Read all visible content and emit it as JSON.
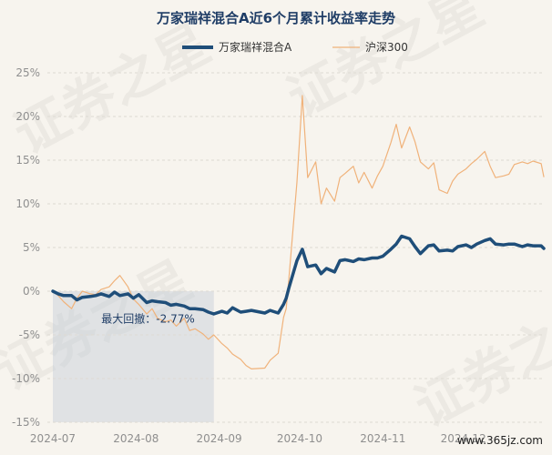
{
  "chart_data": {
    "type": "line",
    "title": "万家瑞祥混合A近6个月累计收益率走势",
    "legend_position": "top",
    "grid": true,
    "ylim": [
      -15,
      25
    ],
    "y_ticks": [
      "25%",
      "20%",
      "15%",
      "10%",
      "5%",
      "0%",
      "-5%",
      "-10%",
      "-15%"
    ],
    "y_tick_values": [
      25,
      20,
      15,
      10,
      5,
      0,
      -5,
      -10,
      -15
    ],
    "x_range": [
      "2024-07-01",
      "2024-12-31"
    ],
    "x_ticks": [
      {
        "label": "2024-07",
        "date": "2024-07-01"
      },
      {
        "label": "2024-08",
        "date": "2024-08-01"
      },
      {
        "label": "2024-09",
        "date": "2024-09-01"
      },
      {
        "label": "2024-10",
        "date": "2024-10-01"
      },
      {
        "label": "2024-11",
        "date": "2024-11-01"
      },
      {
        "label": "2024-12",
        "date": "2024-12-01"
      }
    ],
    "series": [
      {
        "name": "万家瑞祥混合A",
        "color": "#1f4e79",
        "points": [
          [
            "2024-07-01",
            0.0
          ],
          [
            "2024-07-03",
            -0.3
          ],
          [
            "2024-07-05",
            -0.5
          ],
          [
            "2024-07-08",
            -0.5
          ],
          [
            "2024-07-10",
            -1.0
          ],
          [
            "2024-07-12",
            -0.7
          ],
          [
            "2024-07-15",
            -0.6
          ],
          [
            "2024-07-17",
            -0.5
          ],
          [
            "2024-07-19",
            -0.3
          ],
          [
            "2024-07-22",
            -0.6
          ],
          [
            "2024-07-24",
            -0.1
          ],
          [
            "2024-07-26",
            -0.5
          ],
          [
            "2024-07-29",
            -0.3
          ],
          [
            "2024-07-31",
            -0.8
          ],
          [
            "2024-08-02",
            -0.4
          ],
          [
            "2024-08-05",
            -1.3
          ],
          [
            "2024-08-07",
            -1.1
          ],
          [
            "2024-08-09",
            -1.2
          ],
          [
            "2024-08-12",
            -1.3
          ],
          [
            "2024-08-14",
            -1.6
          ],
          [
            "2024-08-16",
            -1.5
          ],
          [
            "2024-08-19",
            -1.7
          ],
          [
            "2024-08-21",
            -2.0
          ],
          [
            "2024-08-23",
            -2.0
          ],
          [
            "2024-08-26",
            -2.1
          ],
          [
            "2024-08-28",
            -2.4
          ],
          [
            "2024-08-30",
            -2.6
          ],
          [
            "2024-09-02",
            -2.3
          ],
          [
            "2024-09-04",
            -2.5
          ],
          [
            "2024-09-06",
            -1.9
          ],
          [
            "2024-09-09",
            -2.4
          ],
          [
            "2024-09-11",
            -2.3
          ],
          [
            "2024-09-13",
            -2.2
          ],
          [
            "2024-09-18",
            -2.5
          ],
          [
            "2024-09-20",
            -2.2
          ],
          [
            "2024-09-23",
            -2.5
          ],
          [
            "2024-09-25",
            -1.5
          ],
          [
            "2024-09-26",
            -0.8
          ],
          [
            "2024-09-27",
            0.4
          ],
          [
            "2024-09-30",
            3.5
          ],
          [
            "2024-10-02",
            4.8
          ],
          [
            "2024-10-04",
            2.8
          ],
          [
            "2024-10-07",
            3.0
          ],
          [
            "2024-10-09",
            2.0
          ],
          [
            "2024-10-11",
            2.6
          ],
          [
            "2024-10-14",
            2.2
          ],
          [
            "2024-10-16",
            3.5
          ],
          [
            "2024-10-18",
            3.6
          ],
          [
            "2024-10-21",
            3.4
          ],
          [
            "2024-10-23",
            3.7
          ],
          [
            "2024-10-25",
            3.6
          ],
          [
            "2024-10-28",
            3.8
          ],
          [
            "2024-10-30",
            3.8
          ],
          [
            "2024-11-01",
            4.0
          ],
          [
            "2024-11-04",
            4.8
          ],
          [
            "2024-11-06",
            5.4
          ],
          [
            "2024-11-08",
            6.3
          ],
          [
            "2024-11-11",
            6.0
          ],
          [
            "2024-11-13",
            5.1
          ],
          [
            "2024-11-15",
            4.3
          ],
          [
            "2024-11-18",
            5.2
          ],
          [
            "2024-11-20",
            5.3
          ],
          [
            "2024-11-22",
            4.6
          ],
          [
            "2024-11-25",
            4.7
          ],
          [
            "2024-11-27",
            4.6
          ],
          [
            "2024-11-29",
            5.1
          ],
          [
            "2024-12-02",
            5.3
          ],
          [
            "2024-12-04",
            5.0
          ],
          [
            "2024-12-06",
            5.4
          ],
          [
            "2024-12-09",
            5.8
          ],
          [
            "2024-12-11",
            6.0
          ],
          [
            "2024-12-13",
            5.4
          ],
          [
            "2024-12-16",
            5.3
          ],
          [
            "2024-12-18",
            5.4
          ],
          [
            "2024-12-20",
            5.4
          ],
          [
            "2024-12-23",
            5.1
          ],
          [
            "2024-12-25",
            5.3
          ],
          [
            "2024-12-27",
            5.2
          ],
          [
            "2024-12-30",
            5.2
          ],
          [
            "2024-12-31",
            4.9
          ]
        ]
      },
      {
        "name": "沪深300",
        "color": "#f0b27a",
        "points": [
          [
            "2024-07-01",
            0.0
          ],
          [
            "2024-07-03",
            -0.5
          ],
          [
            "2024-07-05",
            -1.2
          ],
          [
            "2024-07-08",
            -2.0
          ],
          [
            "2024-07-10",
            -0.8
          ],
          [
            "2024-07-12",
            0.0
          ],
          [
            "2024-07-15",
            -0.3
          ],
          [
            "2024-07-17",
            -0.4
          ],
          [
            "2024-07-19",
            0.2
          ],
          [
            "2024-07-22",
            0.5
          ],
          [
            "2024-07-24",
            1.2
          ],
          [
            "2024-07-26",
            1.8
          ],
          [
            "2024-07-29",
            0.5
          ],
          [
            "2024-07-31",
            -0.9
          ],
          [
            "2024-08-02",
            -1.5
          ],
          [
            "2024-08-05",
            -2.6
          ],
          [
            "2024-08-07",
            -2.0
          ],
          [
            "2024-08-09",
            -3.1
          ],
          [
            "2024-08-12",
            -3.5
          ],
          [
            "2024-08-14",
            -3.3
          ],
          [
            "2024-08-16",
            -4.0
          ],
          [
            "2024-08-19",
            -3.1
          ],
          [
            "2024-08-21",
            -4.5
          ],
          [
            "2024-08-23",
            -4.3
          ],
          [
            "2024-08-26",
            -4.9
          ],
          [
            "2024-08-28",
            -5.5
          ],
          [
            "2024-08-30",
            -5.0
          ],
          [
            "2024-09-02",
            -6.0
          ],
          [
            "2024-09-04",
            -6.5
          ],
          [
            "2024-09-06",
            -7.2
          ],
          [
            "2024-09-09",
            -7.8
          ],
          [
            "2024-09-11",
            -8.5
          ],
          [
            "2024-09-13",
            -8.9
          ],
          [
            "2024-09-18",
            -8.8
          ],
          [
            "2024-09-20",
            -7.9
          ],
          [
            "2024-09-23",
            -7.1
          ],
          [
            "2024-09-25",
            -3.0
          ],
          [
            "2024-09-26",
            -2.0
          ],
          [
            "2024-09-27",
            1.5
          ],
          [
            "2024-09-30",
            12.5
          ],
          [
            "2024-10-02",
            22.4
          ],
          [
            "2024-10-04",
            13.0
          ],
          [
            "2024-10-07",
            14.8
          ],
          [
            "2024-10-09",
            10.0
          ],
          [
            "2024-10-11",
            11.8
          ],
          [
            "2024-10-14",
            10.3
          ],
          [
            "2024-10-16",
            13.0
          ],
          [
            "2024-10-18",
            13.5
          ],
          [
            "2024-10-21",
            14.3
          ],
          [
            "2024-10-23",
            12.4
          ],
          [
            "2024-10-25",
            13.6
          ],
          [
            "2024-10-28",
            11.8
          ],
          [
            "2024-10-30",
            13.2
          ],
          [
            "2024-11-01",
            14.3
          ],
          [
            "2024-11-04",
            17.0
          ],
          [
            "2024-11-06",
            19.1
          ],
          [
            "2024-11-08",
            16.4
          ],
          [
            "2024-11-11",
            18.8
          ],
          [
            "2024-11-13",
            17.1
          ],
          [
            "2024-11-15",
            14.8
          ],
          [
            "2024-11-18",
            14.0
          ],
          [
            "2024-11-20",
            14.7
          ],
          [
            "2024-11-22",
            11.6
          ],
          [
            "2024-11-25",
            11.2
          ],
          [
            "2024-11-27",
            12.6
          ],
          [
            "2024-11-29",
            13.4
          ],
          [
            "2024-12-02",
            14.0
          ],
          [
            "2024-12-04",
            14.6
          ],
          [
            "2024-12-06",
            15.1
          ],
          [
            "2024-12-09",
            16.0
          ],
          [
            "2024-12-11",
            14.3
          ],
          [
            "2024-12-13",
            13.0
          ],
          [
            "2024-12-16",
            13.2
          ],
          [
            "2024-12-18",
            13.4
          ],
          [
            "2024-12-20",
            14.5
          ],
          [
            "2024-12-23",
            14.8
          ],
          [
            "2024-12-25",
            14.6
          ],
          [
            "2024-12-27",
            14.9
          ],
          [
            "2024-12-30",
            14.6
          ],
          [
            "2024-12-31",
            13.1
          ]
        ]
      }
    ],
    "max_drawdown": {
      "label": "最大回撤：-2.77%",
      "value": -2.77,
      "start": "2024-07-01",
      "end": "2024-08-30",
      "shade_color": "#c3cdd8"
    }
  },
  "watermark": [
    "证券之星",
    "证券之星",
    "证券之星",
    "证券之星"
  ],
  "site_footer": "www.365jz.com"
}
